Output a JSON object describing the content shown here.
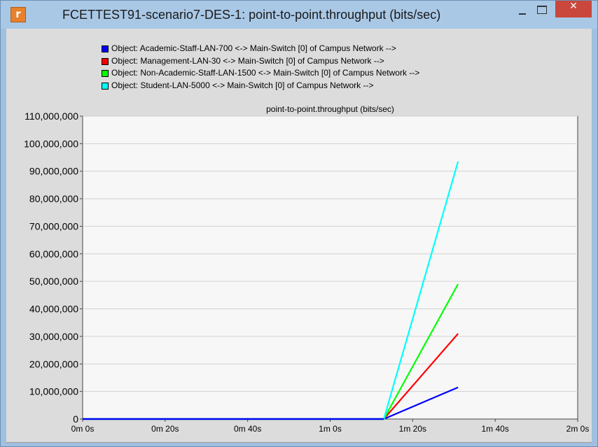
{
  "window": {
    "title": "FCETTEST91-scenario7-DES-1: point-to-point.throughput (bits/sec)",
    "app_icon_glyph": "r",
    "close_glyph": "✕",
    "controls": [
      "minimize-icon",
      "maximize-icon",
      "close-icon"
    ]
  },
  "legend": {
    "items": [
      {
        "label": "Object: Academic-Staff-LAN-700 <-> Main-Switch [0] of Campus Network -->",
        "color": "#0000ff"
      },
      {
        "label": "Object: Management-LAN-30 <-> Main-Switch [0] of Campus Network -->",
        "color": "#ff0000"
      },
      {
        "label": "Object: Non-Academic-Staff-LAN-1500 <-> Main-Switch [0] of Campus Network -->",
        "color": "#00ff00"
      },
      {
        "label": "Object: Student-LAN-5000 <-> Main-Switch [0] of Campus Network -->",
        "color": "#00ffff"
      }
    ]
  },
  "chart_data": {
    "type": "line",
    "title": "point-to-point.throughput (bits/sec)",
    "xlabel": "",
    "ylabel": "",
    "xlim": [
      0,
      120
    ],
    "ylim": [
      0,
      110000000
    ],
    "x_tick_values": [
      0,
      20,
      40,
      60,
      80,
      100,
      120
    ],
    "x_ticks": [
      "0m 0s",
      "0m 20s",
      "0m 40s",
      "1m 0s",
      "1m 20s",
      "1m 40s",
      "2m 0s"
    ],
    "y_tick_values": [
      0,
      10000000,
      20000000,
      30000000,
      40000000,
      50000000,
      60000000,
      70000000,
      80000000,
      90000000,
      100000000,
      110000000
    ],
    "y_ticks": [
      "0",
      "10,000,000",
      "20,000,000",
      "30,000,000",
      "40,000,000",
      "50,000,000",
      "60,000,000",
      "70,000,000",
      "80,000,000",
      "90,000,000",
      "100,000,000",
      "110,000,000"
    ],
    "grid": "horizontal",
    "series": [
      {
        "color": "#0000ff",
        "points": [
          [
            0,
            0
          ],
          [
            73,
            0
          ],
          [
            91,
            11500000
          ]
        ]
      },
      {
        "color": "#ff0000",
        "points": [
          [
            0,
            0
          ],
          [
            73,
            0
          ],
          [
            91,
            31000000
          ]
        ]
      },
      {
        "color": "#00ff00",
        "points": [
          [
            0,
            0
          ],
          [
            73,
            0
          ],
          [
            91,
            49000000
          ]
        ]
      },
      {
        "color": "#00ffff",
        "points": [
          [
            0,
            0
          ],
          [
            73,
            0
          ],
          [
            91,
            93500000
          ]
        ]
      }
    ]
  }
}
